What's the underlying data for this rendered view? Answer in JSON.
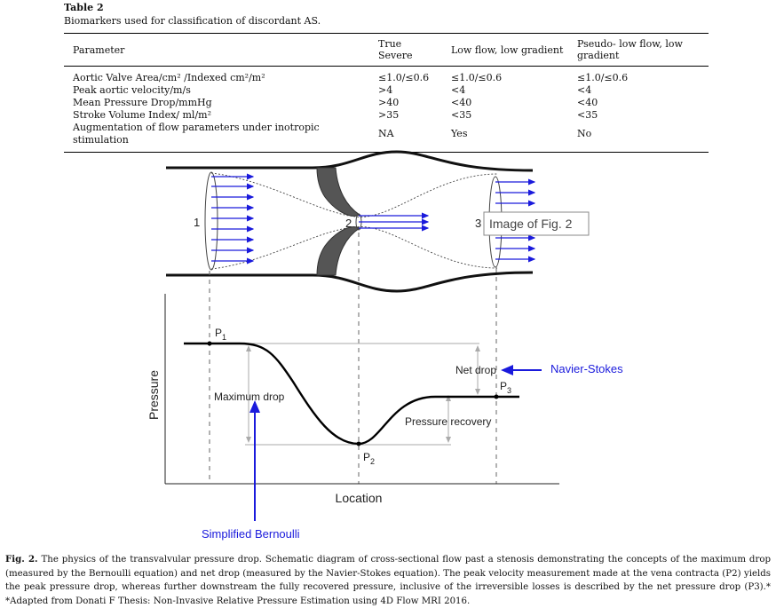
{
  "table": {
    "title": "Table 2",
    "caption": "Biomarkers used for classification of discordant AS.",
    "headers": [
      "Parameter",
      "True Severe",
      "Low flow, low gradient",
      "Pseudo- low flow, low gradient"
    ],
    "rows": [
      [
        "Aortic Valve Area/cm² /Indexed cm²/m²",
        "≤1.0/≤0.6",
        "≤1.0/≤0.6",
        "≤1.0/≤0.6"
      ],
      [
        "Peak aortic velocity/m/s",
        ">4",
        "<4",
        "<4"
      ],
      [
        "Mean Pressure Drop/mmHg",
        ">40",
        "<40",
        "<40"
      ],
      [
        "Stroke Volume Index/ ml/m²",
        ">35",
        "<35",
        "<35"
      ],
      [
        "Augmentation of flow parameters under inotropic stimulation",
        "NA",
        "Yes",
        "No"
      ]
    ]
  },
  "figure": {
    "section_labels": {
      "one": "1",
      "two": "2",
      "three": "3"
    },
    "tooltip": "Image of Fig. 2",
    "y_axis_label": "Pressure",
    "x_axis_label": "Location",
    "p1_main": "P",
    "p1_sub": "1",
    "p2_main": "P",
    "p2_sub": "2",
    "p3_main": "P",
    "p3_sub": "3",
    "maximum_drop": "Maximum drop",
    "net_drop": "Net drop",
    "pressure_recovery": "Pressure recovery",
    "navier_stokes": "Navier-Stokes",
    "simplified_bernoulli": "Simplified Bernoulli",
    "accent_color": "#1a1adc"
  },
  "fig_caption": {
    "label": "Fig. 2.",
    "text": " The physics of the transvalvular pressure drop. Schematic diagram of cross-sectional flow past a stenosis demonstrating the concepts of the maximum drop (measured by the Bernoulli equation) and net drop (measured by the Navier-Stokes equation). The peak velocity measurement made at the vena contracta (P2) yields the peak pressure drop, whereas further downstream the fully recovered pressure, inclusive of the irreversible losses is described by the net pressure drop (P3).* *Adapted from Donati F Thesis: Non-Invasive Relative Pressure Estimation using 4D Flow MRI 2016."
  }
}
